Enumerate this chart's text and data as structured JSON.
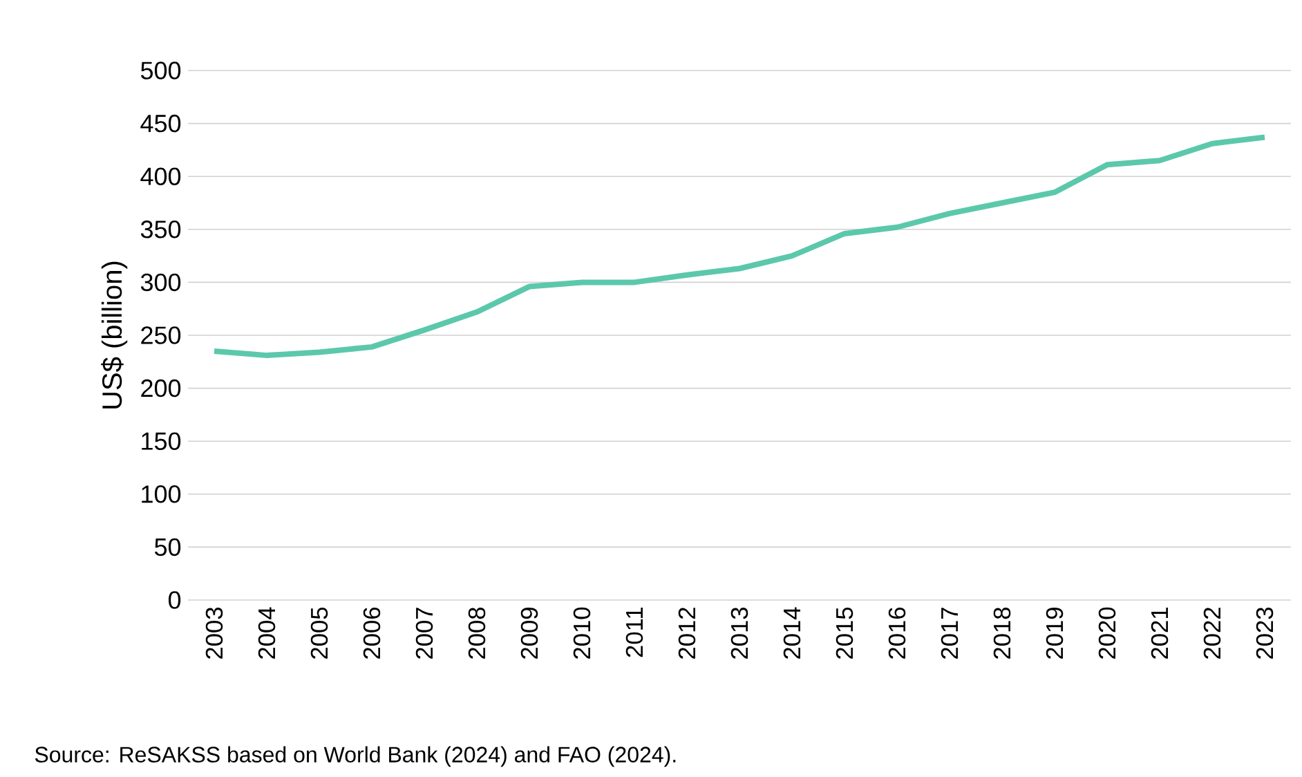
{
  "chart_data": {
    "type": "line",
    "ylabel": "US$ (billion)",
    "categories": [
      "2003",
      "2004",
      "2005",
      "2006",
      "2007",
      "2008",
      "2009",
      "2010",
      "2011",
      "2012",
      "2013",
      "2014",
      "2015",
      "2016",
      "2017",
      "2018",
      "2019",
      "2020",
      "2021",
      "2022",
      "2023"
    ],
    "series": [
      {
        "color": "#5cc8ab",
        "values": [
          235,
          231,
          234,
          239,
          255,
          272,
          296,
          300,
          300,
          307,
          313,
          325,
          346,
          352,
          365,
          375,
          385,
          411,
          415,
          431,
          437
        ]
      }
    ],
    "ylim": [
      0,
      500
    ],
    "yticks": [
      0,
      50,
      100,
      150,
      200,
      250,
      300,
      350,
      400,
      450,
      500
    ],
    "grid": "y",
    "marker": "none",
    "line_style": "solid",
    "annotations": [
      "Source: ReSAKSS based on World Bank (2024) and FAO (2024)."
    ]
  }
}
